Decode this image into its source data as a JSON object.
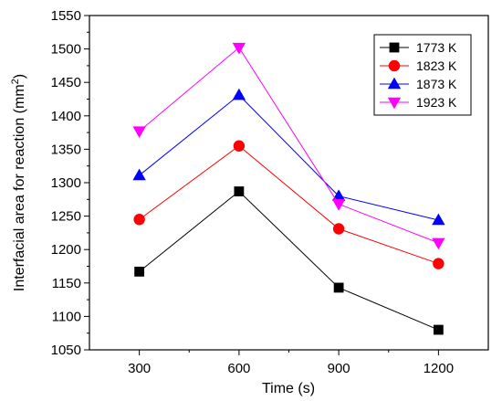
{
  "chart_data": {
    "type": "line",
    "title": "",
    "xlabel": "Time (s)",
    "ylabel_main": "Interfacial area for reaction (mm",
    "ylabel_sup": "2",
    "ylabel_end": ")",
    "x": [
      300,
      600,
      900,
      1200
    ],
    "x_ticks": [
      "300",
      "600",
      "900",
      "1200"
    ],
    "y_ticks": [
      "1050",
      "1100",
      "1150",
      "1200",
      "1250",
      "1300",
      "1350",
      "1400",
      "1450",
      "1500",
      "1550"
    ],
    "xlim": [
      150,
      1350
    ],
    "ylim": [
      1050,
      1550
    ],
    "grid": false,
    "legend_position": "top-right",
    "series": [
      {
        "name": "1773 K",
        "values": [
          1167,
          1287,
          1143,
          1080
        ],
        "color": "#000000",
        "marker": "square"
      },
      {
        "name": "1823 K",
        "values": [
          1245,
          1355,
          1231,
          1179
        ],
        "color": "#ff0000",
        "marker": "circle"
      },
      {
        "name": "1873 K",
        "values": [
          1311,
          1431,
          1280,
          1244
        ],
        "color": "#0000ff",
        "marker": "triangle-up"
      },
      {
        "name": "1923 K",
        "values": [
          1377,
          1502,
          1268,
          1210
        ],
        "color": "#ff00ff",
        "marker": "triangle-down"
      }
    ]
  }
}
